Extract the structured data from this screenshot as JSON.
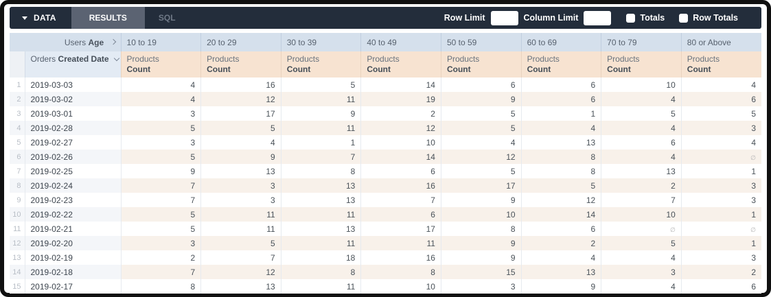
{
  "toolbar": {
    "data_label": "DATA",
    "results_label": "RESULTS",
    "sql_label": "SQL",
    "row_limit_label": "Row Limit",
    "row_limit_value": "",
    "column_limit_label": "Column Limit",
    "column_limit_value": "",
    "totals_label": "Totals",
    "totals_checked": false,
    "row_totals_label": "Row Totals",
    "row_totals_checked": false
  },
  "table": {
    "pivot_dimension": {
      "normal": "Users",
      "bold": "Age"
    },
    "pivot_columns": [
      "10 to 19",
      "20 to 29",
      "30 to 39",
      "40 to 49",
      "50 to 59",
      "60 to 69",
      "70 to 79",
      "80 or Above"
    ],
    "row_dimension": {
      "normal": "Orders",
      "bold": "Created Date"
    },
    "measure": {
      "normal": "Products",
      "bold": "Count"
    },
    "null_symbol": "∅",
    "rows": [
      {
        "n": 1,
        "date": "2019-03-03",
        "values": [
          4,
          16,
          5,
          14,
          6,
          6,
          10,
          4
        ]
      },
      {
        "n": 2,
        "date": "2019-03-02",
        "values": [
          4,
          12,
          11,
          19,
          9,
          6,
          4,
          6
        ]
      },
      {
        "n": 3,
        "date": "2019-03-01",
        "values": [
          3,
          17,
          9,
          2,
          5,
          1,
          5,
          5
        ]
      },
      {
        "n": 4,
        "date": "2019-02-28",
        "values": [
          5,
          5,
          11,
          12,
          5,
          4,
          4,
          3
        ]
      },
      {
        "n": 5,
        "date": "2019-02-27",
        "values": [
          3,
          4,
          1,
          10,
          4,
          13,
          6,
          4
        ]
      },
      {
        "n": 6,
        "date": "2019-02-26",
        "values": [
          5,
          9,
          7,
          14,
          12,
          8,
          4,
          null
        ]
      },
      {
        "n": 7,
        "date": "2019-02-25",
        "values": [
          9,
          13,
          8,
          6,
          5,
          8,
          13,
          1
        ]
      },
      {
        "n": 8,
        "date": "2019-02-24",
        "values": [
          7,
          3,
          13,
          16,
          17,
          5,
          2,
          3
        ]
      },
      {
        "n": 9,
        "date": "2019-02-23",
        "values": [
          7,
          3,
          13,
          7,
          9,
          12,
          7,
          3
        ]
      },
      {
        "n": 10,
        "date": "2019-02-22",
        "values": [
          5,
          11,
          11,
          6,
          10,
          14,
          10,
          1
        ]
      },
      {
        "n": 11,
        "date": "2019-02-21",
        "values": [
          5,
          11,
          13,
          17,
          8,
          6,
          null,
          null
        ]
      },
      {
        "n": 12,
        "date": "2019-02-20",
        "values": [
          3,
          5,
          11,
          11,
          9,
          2,
          5,
          1
        ]
      },
      {
        "n": 13,
        "date": "2019-02-19",
        "values": [
          2,
          7,
          18,
          16,
          9,
          4,
          4,
          3
        ]
      },
      {
        "n": 14,
        "date": "2019-02-18",
        "values": [
          7,
          12,
          8,
          8,
          15,
          13,
          3,
          2
        ]
      },
      {
        "n": 15,
        "date": "2019-02-17",
        "values": [
          8,
          13,
          11,
          10,
          3,
          9,
          4,
          6
        ]
      }
    ]
  },
  "colors": {
    "frame_border": "#101010",
    "bar_background": "#232d3b",
    "results_tab_background": "#5b6372",
    "pivot_header_background": "#d5e0ec",
    "measure_header_background": "#f7e3d1",
    "even_row_tint_dimension": "#f4f6f9",
    "even_row_tint_measure": "#f8f1ea"
  }
}
